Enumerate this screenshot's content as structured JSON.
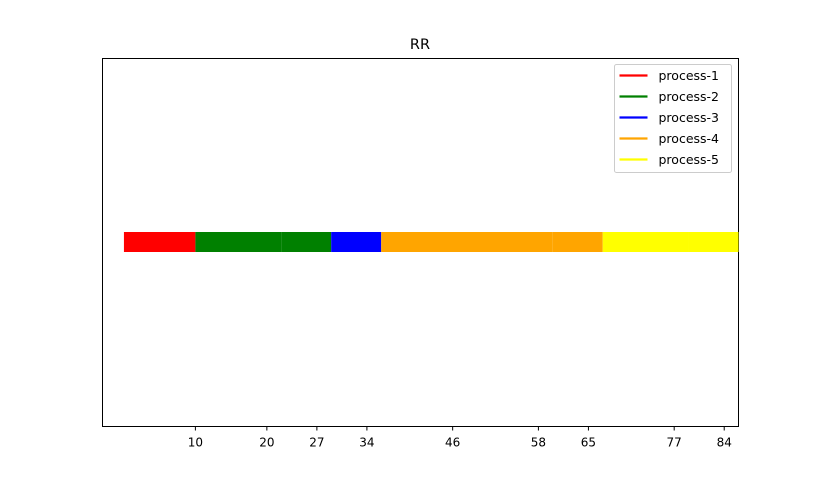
{
  "chart_data": {
    "type": "bar",
    "orientation": "horizontal",
    "title": "RR",
    "xlabel": "",
    "ylabel": "",
    "grid": false,
    "legend_position": "top-right",
    "xlim": [
      -3,
      86
    ],
    "xticks": [
      10,
      20,
      27,
      34,
      46,
      58,
      65,
      77,
      84
    ],
    "series": [
      {
        "name": "process-1",
        "color": "#ff0000"
      },
      {
        "name": "process-2",
        "color": "#008000"
      },
      {
        "name": "process-3",
        "color": "#0000ff"
      },
      {
        "name": "process-4",
        "color": "#ffa500"
      },
      {
        "name": "process-5",
        "color": "#ffff00"
      }
    ],
    "segments": [
      {
        "process": "process-1",
        "start": 0,
        "end": 10
      },
      {
        "process": "process-2",
        "start": 10,
        "end": 22
      },
      {
        "process": "process-2",
        "start": 22,
        "end": 29
      },
      {
        "process": "process-3",
        "start": 29,
        "end": 36
      },
      {
        "process": "process-4",
        "start": 36,
        "end": 60
      },
      {
        "process": "process-4",
        "start": 60,
        "end": 67
      },
      {
        "process": "process-5",
        "start": 67,
        "end": 79
      },
      {
        "process": "process-5",
        "start": 79,
        "end": 86
      }
    ]
  }
}
